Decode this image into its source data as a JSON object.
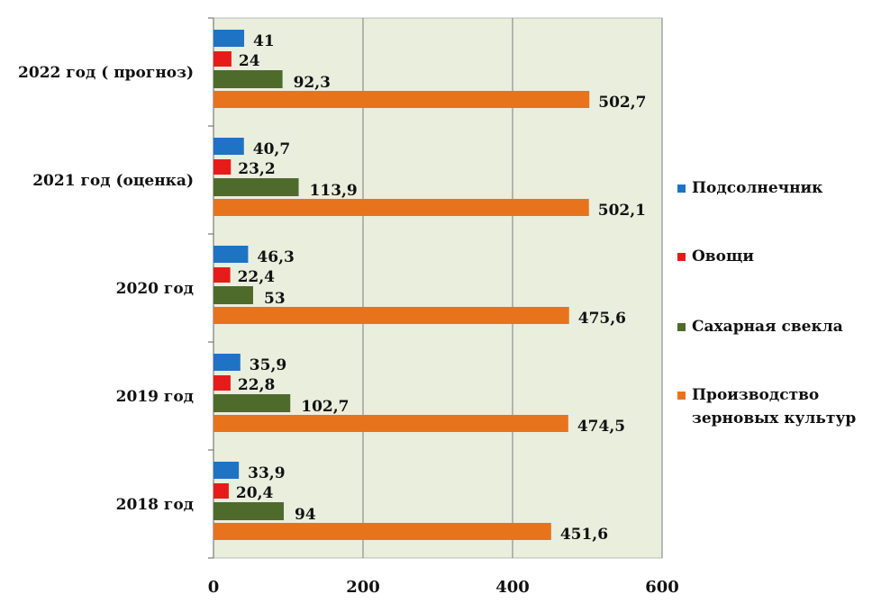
{
  "chart_data": {
    "type": "bar",
    "orientation": "horizontal",
    "categories": [
      "2018 год",
      "2019 год",
      "2020  год",
      "2021 год (оценка)",
      "2022 год ( прогноз)"
    ],
    "series": [
      {
        "name": "Подсолнечник",
        "color": "#1f73c4",
        "values": [
          33.9,
          35.9,
          46.3,
          40.7,
          41
        ],
        "labels": [
          "33,9",
          "35,9",
          "46,3",
          "40,7",
          "41"
        ]
      },
      {
        "name": "Овощи",
        "color": "#e81b1b",
        "values": [
          20.4,
          22.8,
          22.4,
          23.2,
          24
        ],
        "labels": [
          "20,4",
          "22,8",
          "22,4",
          "23,2",
          "24"
        ]
      },
      {
        "name": "Сахарная  свекла",
        "color": "#4e6b2c",
        "values": [
          94,
          102.7,
          53,
          113.9,
          92.3
        ],
        "labels": [
          "94",
          "102,7",
          "53",
          "113,9",
          "92,3"
        ]
      },
      {
        "name": "Производство зерновых культур",
        "color": "#e7741c",
        "values": [
          451.6,
          474.5,
          475.6,
          502.1,
          502.7
        ],
        "labels": [
          "451,6",
          "474,5",
          "475,6",
          "502,1",
          "502,7"
        ]
      }
    ],
    "xlim": [
      0,
      600
    ],
    "ticks": [
      "0",
      "200",
      "400",
      "600"
    ],
    "tick_values": [
      0,
      200,
      400,
      600
    ],
    "legend_position": "right",
    "grid": true,
    "plot_background": "#eaeedd",
    "grid_color": "#8f8f8f"
  }
}
